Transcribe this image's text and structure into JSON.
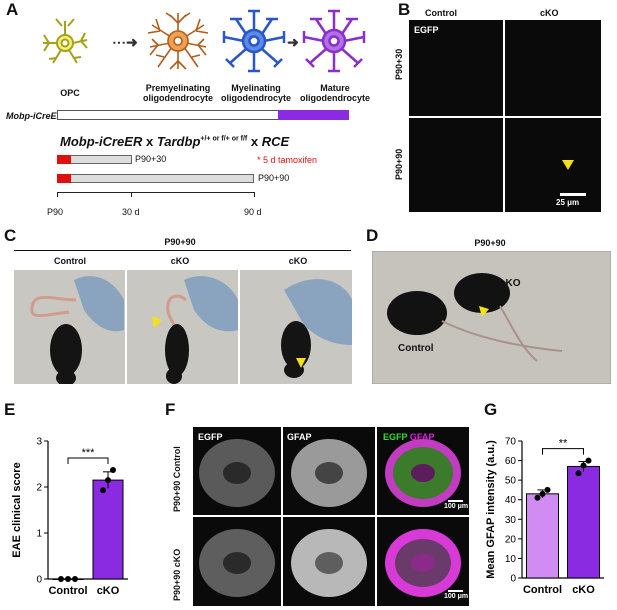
{
  "panels": {
    "A": "A",
    "B": "B",
    "C": "C",
    "D": "D",
    "E": "E",
    "F": "F",
    "G": "G"
  },
  "panelA": {
    "cells": [
      {
        "label": "OPC",
        "color": "#a6a11c"
      },
      {
        "label": "Premyelinating\noligodendrocyte",
        "color": "#b25c1c"
      },
      {
        "label": "Myelinating\noligodendrocyte",
        "color": "#2a56c6"
      },
      {
        "label": "Mature\noligodendrocyte",
        "color": "#8a2fc7"
      }
    ],
    "driver_label": "Mobp-iCreER",
    "cross_part1": "Mobp-iCreER",
    "cross_part2": " x ",
    "cross_part3": "Tardbp",
    "cross_superscript": "+/+ or f/+ or f/f",
    "cross_part4": " x ",
    "cross_part5": "RCE",
    "tamoxifen_note": "* 5 d tamoxifen",
    "bar1_label": "P90+30",
    "bar2_label": "P90+90",
    "timeline_ticks": [
      "P90",
      "30 d",
      "90 d"
    ]
  },
  "panelB": {
    "col_labels": [
      "Control",
      "cKO"
    ],
    "row_labels": [
      "P90+30",
      "P90+90"
    ],
    "channel": "EGFP",
    "scalebar": "25 μm"
  },
  "panelC": {
    "header": "P90+90",
    "col_labels": [
      "Control",
      "cKO",
      "cKO"
    ]
  },
  "panelD": {
    "header": "P90+90",
    "labels": [
      "cKO",
      "Control"
    ]
  },
  "panelF": {
    "col_labels": [
      "EGFP",
      "GFAP"
    ],
    "merge_label_1": "EGFP",
    "merge_label_2": "GFAP",
    "row_labels": [
      "P90+90 Control",
      "P90+90 cKO"
    ],
    "scalebar": "100 μm"
  },
  "chart_data": [
    {
      "type": "bar",
      "panel": "E",
      "categories": [
        "Control",
        "cKO"
      ],
      "values": [
        0,
        2.15
      ],
      "errors": [
        0,
        0.18
      ],
      "points": [
        [
          0,
          0,
          0
        ],
        [
          1.93,
          2.37,
          2.15
        ]
      ],
      "colors": [
        "#ffffff",
        "#8a2be2"
      ],
      "ylabel": "EAE clinical score",
      "ylim": [
        0,
        3
      ],
      "yticks": [
        0,
        1,
        2,
        3
      ],
      "significance": "***"
    },
    {
      "type": "bar",
      "panel": "G",
      "categories": [
        "Control",
        "cKO"
      ],
      "values": [
        43,
        57
      ],
      "errors": [
        2,
        2.5
      ],
      "points": [
        [
          41,
          45,
          43
        ],
        [
          53.5,
          60,
          57.5
        ]
      ],
      "colors": [
        "#d08cf2",
        "#8a2be2"
      ],
      "ylabel": "Mean GFAP intensity (a.u.)",
      "ylim": [
        0,
        70
      ],
      "yticks": [
        0,
        10,
        20,
        30,
        40,
        50,
        60,
        70
      ],
      "significance": "**"
    }
  ]
}
